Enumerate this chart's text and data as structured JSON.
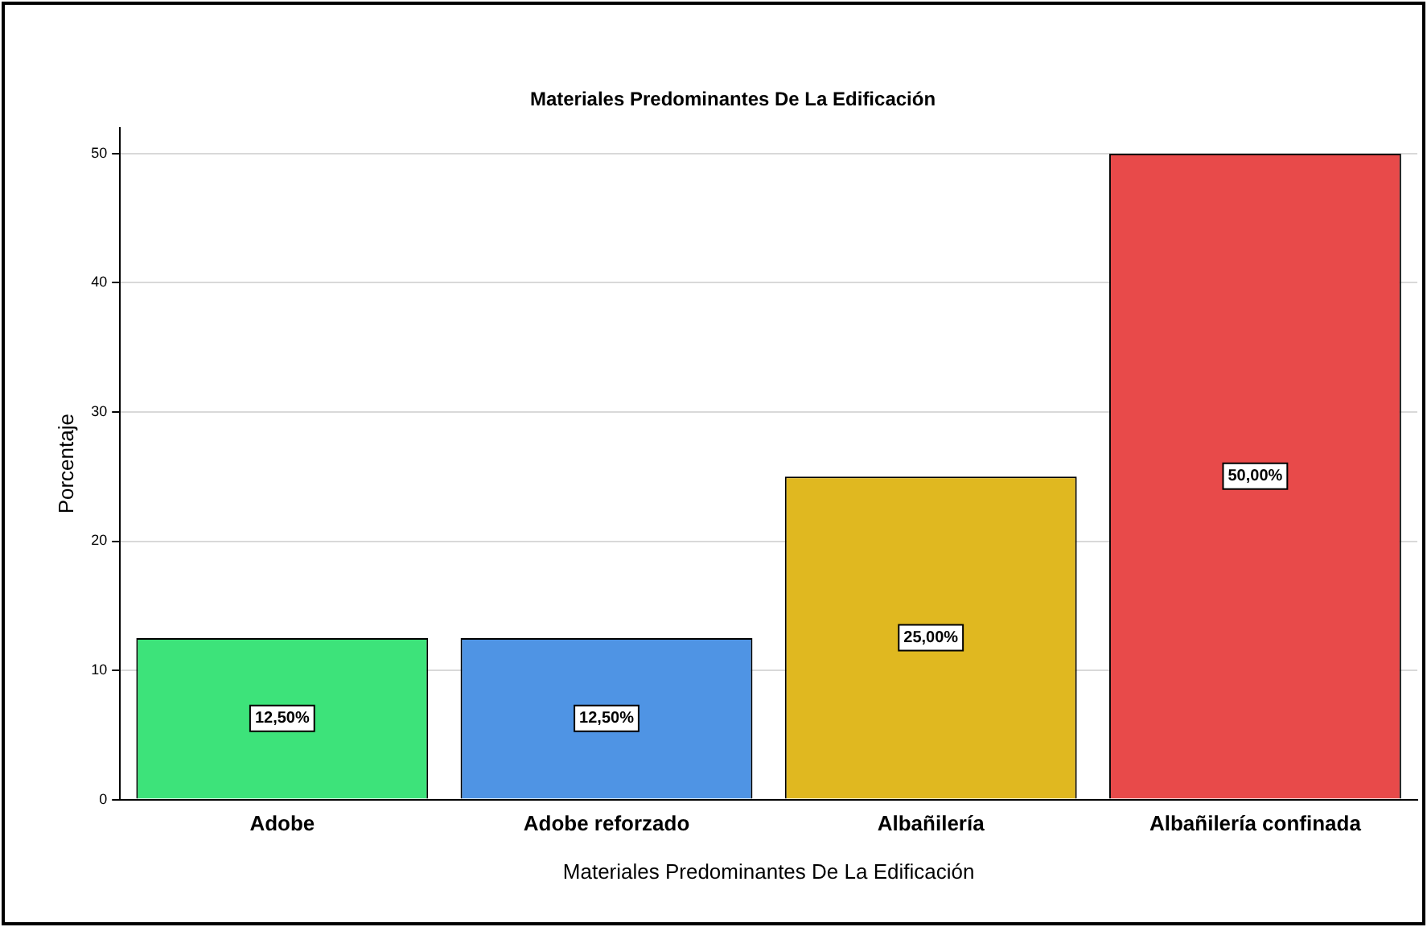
{
  "chart_data": {
    "type": "bar",
    "title": "Materiales Predominantes De La Edificación",
    "xlabel": "Materiales Predominantes De La Edificación",
    "ylabel": "Porcentaje",
    "categories": [
      "Adobe",
      "Adobe reforzado",
      "Albañilería",
      "Albañilería confinada"
    ],
    "values": [
      12.5,
      12.5,
      25,
      50
    ],
    "colors": [
      "#3de37a",
      "#4f94e4",
      "#e0b820",
      "#e84a4a"
    ],
    "value_labels": [
      "12,50%",
      "12,50%",
      "25,00%",
      "50,00%"
    ],
    "ylim": [
      0,
      52
    ],
    "yticks": [
      0,
      10,
      20,
      30,
      40,
      50
    ],
    "grid": "y",
    "legend": false
  }
}
